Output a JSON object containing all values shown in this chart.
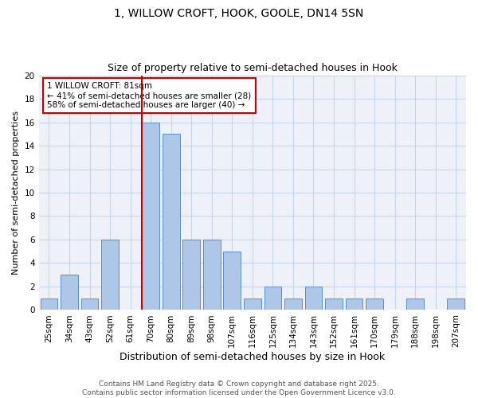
{
  "title_line1": "1, WILLOW CROFT, HOOK, GOOLE, DN14 5SN",
  "title_line2": "Size of property relative to semi-detached houses in Hook",
  "xlabel": "Distribution of semi-detached houses by size in Hook",
  "ylabel": "Number of semi-detached properties",
  "bar_labels": [
    "25sqm",
    "34sqm",
    "43sqm",
    "52sqm",
    "61sqm",
    "70sqm",
    "80sqm",
    "89sqm",
    "98sqm",
    "107sqm",
    "116sqm",
    "125sqm",
    "134sqm",
    "143sqm",
    "152sqm",
    "161sqm",
    "170sqm",
    "179sqm",
    "188sqm",
    "198sqm",
    "207sqm"
  ],
  "bar_values": [
    1,
    3,
    1,
    6,
    0,
    16,
    15,
    6,
    6,
    5,
    1,
    2,
    1,
    2,
    1,
    1,
    1,
    0,
    1,
    0,
    1
  ],
  "bar_color": "#aec6e8",
  "bar_edge_color": "#5b8ec4",
  "vline_color": "#cc0000",
  "vline_bin_index": 5,
  "annotation_text": "1 WILLOW CROFT: 81sqm\n← 41% of semi-detached houses are smaller (28)\n58% of semi-detached houses are larger (40) →",
  "annotation_box_color": "#cc0000",
  "ylim": [
    0,
    20
  ],
  "yticks": [
    0,
    2,
    4,
    6,
    8,
    10,
    12,
    14,
    16,
    18,
    20
  ],
  "grid_color": "#c8d4e8",
  "background_color": "#eef2f8",
  "footer_text": "Contains HM Land Registry data © Crown copyright and database right 2025.\nContains public sector information licensed under the Open Government Licence v3.0.",
  "title_fontsize": 10,
  "subtitle_fontsize": 9,
  "ylabel_fontsize": 8,
  "xlabel_fontsize": 9,
  "tick_fontsize": 7.5,
  "annotation_fontsize": 7.5,
  "footer_fontsize": 6.5
}
